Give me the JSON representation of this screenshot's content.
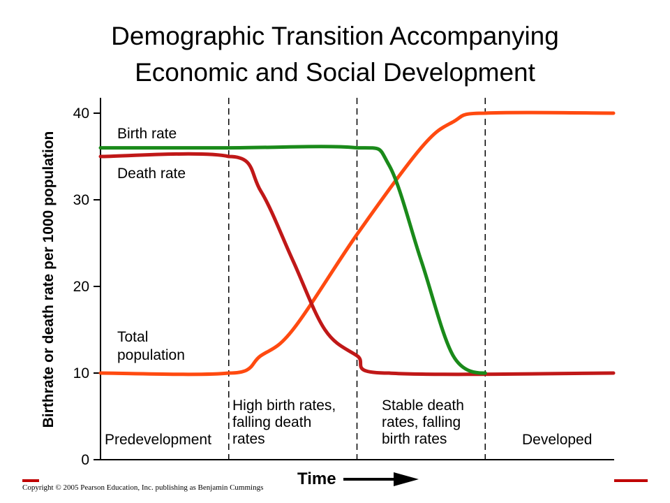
{
  "title_line1": "Demographic Transition Accompanying",
  "title_line2": "Economic and Social Development",
  "footer": {
    "copyright": "Copyright © 2005 Pearson Education, Inc. publishing as Benjamin Cummings",
    "accent_color": "#c00000"
  },
  "chart_data": {
    "type": "line",
    "title": "Demographic Transition Accompanying Economic and Social Development",
    "xlabel": "Time",
    "ylabel": "Birthrate or death rate per 1000 population",
    "ylim": [
      0,
      40
    ],
    "yticks": [
      0,
      10,
      20,
      30,
      40
    ],
    "xlim": [
      0,
      4
    ],
    "grid": false,
    "phase_boundaries": [
      1,
      2,
      3
    ],
    "phases": [
      {
        "label": [
          "Predevelopment"
        ]
      },
      {
        "label": [
          "High birth rates,",
          "falling death",
          "rates"
        ]
      },
      {
        "label": [
          "Stable death",
          "rates, falling",
          "birth rates"
        ]
      },
      {
        "label": [
          "Developed"
        ]
      }
    ],
    "series": [
      {
        "name": "Birth rate",
        "label_lines": [
          "Birth rate"
        ],
        "color": "#1a8a1a",
        "x": [
          0,
          1,
          2,
          2.25,
          2.5,
          2.75,
          3
        ],
        "y": [
          36,
          36,
          36,
          34,
          23,
          12,
          10
        ]
      },
      {
        "name": "Death rate",
        "label_lines": [
          "Death rate"
        ],
        "color": "#c01818",
        "x": [
          0,
          1,
          1.25,
          1.5,
          1.75,
          2,
          2.25,
          4
        ],
        "y": [
          35,
          35,
          31,
          23,
          15,
          12,
          10,
          10
        ]
      },
      {
        "name": "Total population",
        "label_lines": [
          "Total",
          "population"
        ],
        "color": "#ff4a10",
        "x": [
          0,
          1,
          1.25,
          1.5,
          2,
          2.5,
          2.75,
          3,
          4
        ],
        "y": [
          10,
          10,
          12,
          15,
          26,
          36,
          39,
          40,
          40
        ]
      }
    ]
  }
}
